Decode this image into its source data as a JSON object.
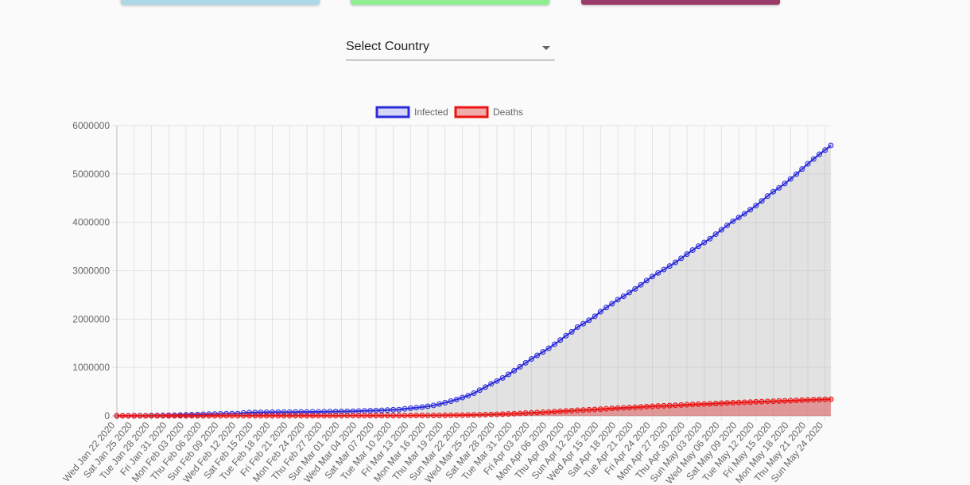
{
  "top_cards": [
    {
      "color": "#add8e6"
    },
    {
      "color": "#90ee90"
    },
    {
      "color": "#9b3b6a"
    }
  ],
  "country_select": {
    "label": "Select Country",
    "value": ""
  },
  "chart_data": {
    "type": "area",
    "x_start": "2020-01-22",
    "x_end": "2020-05-25",
    "x_tick_labels": [
      "Wed Jan 22 2020",
      "Sat Jan 25 2020",
      "Tue Jan 28 2020",
      "Fri Jan 31 2020",
      "Mon Feb 03 2020",
      "Thu Feb 06 2020",
      "Sun Feb 09 2020",
      "Wed Feb 12 2020",
      "Sat Feb 15 2020",
      "Tue Feb 18 2020",
      "Fri Feb 21 2020",
      "Mon Feb 24 2020",
      "Thu Feb 27 2020",
      "Sun Mar 01 2020",
      "Wed Mar 04 2020",
      "Sat Mar 07 2020",
      "Tue Mar 10 2020",
      "Fri Mar 13 2020",
      "Mon Mar 16 2020",
      "Thu Mar 19 2020",
      "Sun Mar 22 2020",
      "Wed Mar 25 2020",
      "Sat Mar 28 2020",
      "Tue Mar 31 2020",
      "Fri Apr 03 2020",
      "Mon Apr 06 2020",
      "Thu Apr 09 2020",
      "Sun Apr 12 2020",
      "Wed Apr 15 2020",
      "Sat Apr 18 2020",
      "Tue Apr 21 2020",
      "Fri Apr 24 2020",
      "Mon Apr 27 2020",
      "Thu Apr 30 2020",
      "Sun May 03 2020",
      "Wed May 06 2020",
      "Sat May 09 2020",
      "Tue May 12 2020",
      "Fri May 15 2020",
      "Mon May 18 2020",
      "Thu May 21 2020",
      "Sun May 24 2020"
    ],
    "y_ticks": [
      "0",
      "1000000",
      "2000000",
      "3000000",
      "4000000",
      "5000000",
      "6000000"
    ],
    "ylim": [
      0,
      6000000
    ],
    "grid": true,
    "legend_position": "top",
    "series": [
      {
        "name": "Infected",
        "color": "#2b2bdb",
        "fill": "rgba(43,43,219,0.18)",
        "values": [
          555,
          654,
          941,
          1434,
          2118,
          2927,
          5578,
          6166,
          8234,
          9927,
          12038,
          16787,
          19881,
          23892,
          27635,
          30794,
          34391,
          37120,
          40150,
          42762,
          44802,
          45221,
          60368,
          66885,
          69030,
          71224,
          73258,
          75136,
          75639,
          76197,
          76819,
          78572,
          79339,
          80278,
          81428,
          82746,
          84112,
          86011,
          88369,
          90306,
          92840,
          95120,
          97886,
          101801,
          105847,
          109821,
          113590,
          118620,
          125875,
          128343,
          145193,
          156097,
          167449,
          181546,
          197168,
          214915,
          242713,
          272167,
          304528,
          336953,
          378235,
          418045,
          467653,
          529591,
          593291,
          660693,
          720140,
          782389,
          857487,
          932605,
          1013466,
          1095917,
          1176060,
          1249754,
          1321481,
          1396476,
          1480202,
          1565278,
          1657526,
          1735650,
          1834721,
          1904838,
          1976191,
          2056054,
          2152437,
          2240190,
          2317759,
          2401378,
          2472259,
          2549294,
          2624068,
          2708885,
          2795989,
          2881140,
          2955033,
          3023722,
          3097229,
          3172287,
          3256846,
          3343777,
          3427343,
          3506729,
          3583055,
          3662691,
          3755341,
          3845718,
          3938064,
          4024009,
          4101699,
          4177502,
          4261747,
          4347018,
          4442163,
          4542347,
          4634068,
          4713620,
          4801943,
          4897492,
          4996472,
          5102424,
          5210817,
          5310362,
          5407613,
          5495061,
          5589626
        ]
      },
      {
        "name": "Deaths",
        "color": "#ee1111",
        "fill": "rgba(220,40,40,0.38)",
        "values": [
          17,
          18,
          26,
          42,
          56,
          82,
          131,
          133,
          171,
          213,
          259,
          362,
          426,
          492,
          564,
          634,
          719,
          806,
          906,
          1013,
          1113,
          1118,
          1371,
          1523,
          1666,
          1770,
          1868,
          2007,
          2122,
          2247,
          2251,
          2458,
          2469,
          2629,
          2708,
          2770,
          2814,
          2872,
          2941,
          2996,
          3085,
          3160,
          3254,
          3348,
          3460,
          3558,
          3802,
          3988,
          4262,
          4615,
          4720,
          5404,
          5819,
          6440,
          7126,
          7905,
          8733,
          9867,
          11299,
          12973,
          14623,
          16497,
          18615,
          21181,
          24170,
          27412,
          30888,
          34847,
          39467,
          44174,
          50352,
          56466,
          62346,
          67931,
          73123,
          79142,
          86807,
          93695,
          100834,
          107877,
          114210,
          119693,
          125961,
          132550,
          137924,
          145573,
          153868,
          159698,
          165102,
          169938,
          175993,
          183023,
          190191,
          196839,
          202846,
          206921,
          211854,
          217970,
          224306,
          230103,
          236039,
          239869,
          243857,
          249253,
          255292,
          261118,
          266982,
          271500,
          275154,
          279189,
          283836,
          289422,
          294191,
          298922,
          302604,
          306136,
          310116,
          314800,
          319133,
          324180,
          328386,
          333220,
          336780,
          340030,
          343100
        ]
      }
    ]
  }
}
